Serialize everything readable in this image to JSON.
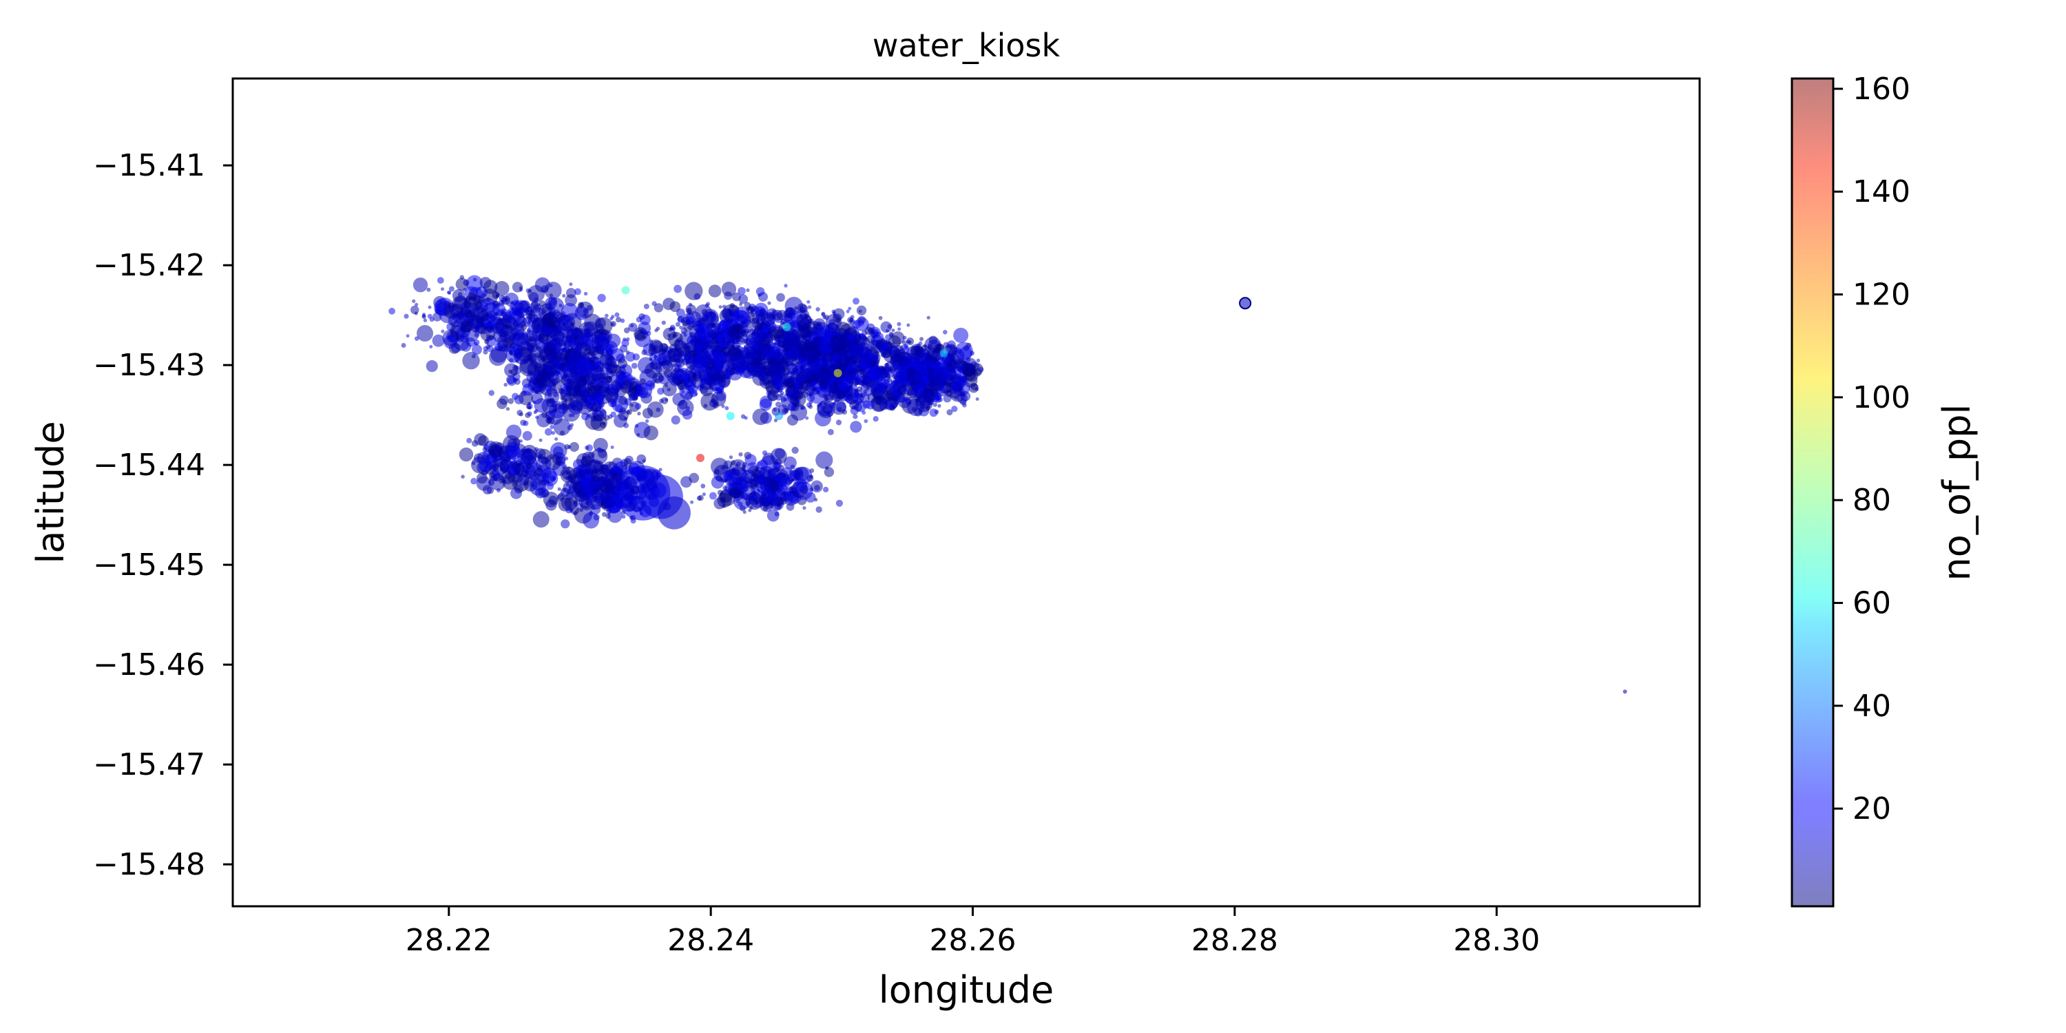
{
  "chart_data": {
    "type": "scatter",
    "title": "water_kiosk",
    "xlabel": "longitude",
    "ylabel": "latitude",
    "xlim": [
      28.2035,
      28.3155
    ],
    "ylim": [
      -15.4842,
      -15.4013
    ],
    "xticks": [
      28.22,
      28.24,
      28.26,
      28.28,
      28.3
    ],
    "xtick_labels": [
      "28.22",
      "28.24",
      "28.26",
      "28.28",
      "28.30"
    ],
    "yticks": [
      -15.41,
      -15.42,
      -15.43,
      -15.44,
      -15.45,
      -15.46,
      -15.47,
      -15.48
    ],
    "ytick_labels": [
      "−15.41",
      "−15.42",
      "−15.43",
      "−15.44",
      "−15.45",
      "−15.46",
      "−15.47",
      "−15.48"
    ],
    "grid": false,
    "colorbar": {
      "label": "no_of_ppl",
      "colormap": "jet",
      "alpha": 0.5,
      "range": [
        1,
        162
      ],
      "ticks": [
        20,
        40,
        60,
        80,
        100,
        120,
        140,
        160
      ],
      "tick_labels": [
        "20",
        "40",
        "60",
        "80",
        "100",
        "120",
        "140",
        "160"
      ]
    },
    "cluster_points": {
      "lon_range": [
        28.2115,
        28.262
      ],
      "lat_range": [
        -15.4505,
        -15.4212
      ],
      "value_range": [
        1,
        30
      ],
      "description_note": "dense cloud of several thousand semi-transparent blue markers"
    },
    "points": [
      {
        "lon": 28.2348,
        "lat": -15.4428,
        "value": 18
      },
      {
        "lon": 28.2362,
        "lat": -15.4432,
        "value": 16
      },
      {
        "lon": 28.2372,
        "lat": -15.4448,
        "value": 14
      },
      {
        "lon": 28.2497,
        "lat": -15.4308,
        "value": 100
      },
      {
        "lon": 28.2392,
        "lat": -15.4393,
        "value": 145
      },
      {
        "lon": 28.2335,
        "lat": -15.4225,
        "value": 70
      },
      {
        "lon": 28.2458,
        "lat": -15.4262,
        "value": 65
      },
      {
        "lon": 28.2415,
        "lat": -15.4351,
        "value": 60
      },
      {
        "lon": 28.2578,
        "lat": -15.4288,
        "value": 55
      },
      {
        "lon": 28.2452,
        "lat": -15.4351,
        "value": 45
      },
      {
        "lon": 28.2808,
        "lat": -15.4238,
        "value": 12
      },
      {
        "lon": 28.3098,
        "lat": -15.4627,
        "value": 8
      }
    ]
  }
}
